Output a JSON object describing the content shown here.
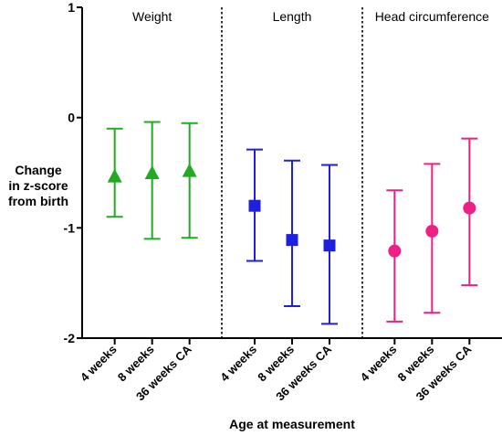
{
  "chart_data": {
    "type": "scatter",
    "ylabel_lines": [
      "Change",
      "in z-score",
      "from birth"
    ],
    "xlabel": "Age at measurement",
    "ylim": [
      -2,
      1
    ],
    "yticks": [
      1,
      0,
      -1,
      -2
    ],
    "yticklabels": [
      "1",
      "0",
      "-1",
      "-2"
    ],
    "categories": [
      "4 weeks",
      "8 weeks",
      "36 weeks CA"
    ],
    "panels": [
      {
        "title": "Weight",
        "color": "#22aa22",
        "marker": "triangle",
        "points": [
          {
            "category": "4 weeks",
            "mean": -0.53,
            "lower": -0.9,
            "upper": -0.1
          },
          {
            "category": "8 weeks",
            "mean": -0.5,
            "lower": -1.1,
            "upper": -0.04
          },
          {
            "category": "36 weeks CA",
            "mean": -0.48,
            "lower": -1.09,
            "upper": -0.05
          }
        ]
      },
      {
        "title": "Length",
        "color": "#1f1fe0",
        "marker": "square",
        "points": [
          {
            "category": "4 weeks",
            "mean": -0.8,
            "lower": -1.3,
            "upper": -0.29
          },
          {
            "category": "8 weeks",
            "mean": -1.11,
            "lower": -1.71,
            "upper": -0.39
          },
          {
            "category": "36 weeks CA",
            "mean": -1.16,
            "lower": -1.87,
            "upper": -0.43
          }
        ]
      },
      {
        "title": "Head circumference",
        "color": "#ee1f85",
        "marker": "circle",
        "points": [
          {
            "category": "4 weeks",
            "mean": -1.21,
            "lower": -1.85,
            "upper": -0.66
          },
          {
            "category": "8 weeks",
            "mean": -1.03,
            "lower": -1.77,
            "upper": -0.42
          },
          {
            "category": "36 weeks CA",
            "mean": -0.82,
            "lower": -1.52,
            "upper": -0.19
          }
        ]
      }
    ]
  }
}
